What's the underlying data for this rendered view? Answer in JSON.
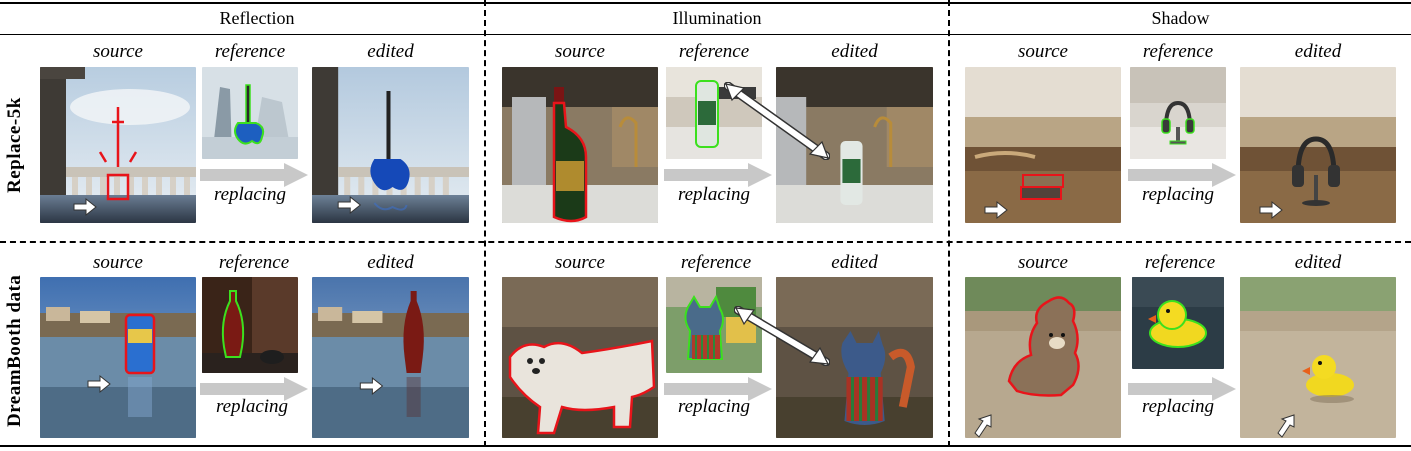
{
  "columns": [
    "Reflection",
    "Illumination",
    "Shadow"
  ],
  "rows": [
    "Replace-5k",
    "DreamBooth data"
  ],
  "labels": {
    "source": "source",
    "reference": "reference",
    "edited": "edited",
    "replacing": "replacing"
  },
  "colors": {
    "source_mask": "#e8141a",
    "reference_mask": "#3ce01e",
    "process_arrow": "#c8c8c8"
  },
  "panels": [
    {
      "row": 0,
      "col": 0,
      "source": "balcony-with-gift-box",
      "reference": "blue-guitar",
      "edited": "balcony-with-guitar"
    },
    {
      "row": 0,
      "col": 1,
      "source": "kitchen-with-wine-bottle",
      "reference": "green-can",
      "edited": "kitchen-with-can"
    },
    {
      "row": 0,
      "col": 2,
      "source": "kitchen-table-with-books",
      "reference": "headphone-stand",
      "edited": "table-with-headphones"
    },
    {
      "row": 1,
      "col": 0,
      "source": "frozen-lake-with-can",
      "reference": "red-vase",
      "edited": "frozen-lake-with-vase"
    },
    {
      "row": 1,
      "col": 1,
      "source": "white-dog-on-ground",
      "reference": "cat-toy",
      "edited": "ground-with-cat-toy"
    },
    {
      "row": 1,
      "col": 2,
      "source": "teddy-bear-on-path",
      "reference": "rubber-duck",
      "edited": "path-with-rubber-duck"
    }
  ]
}
